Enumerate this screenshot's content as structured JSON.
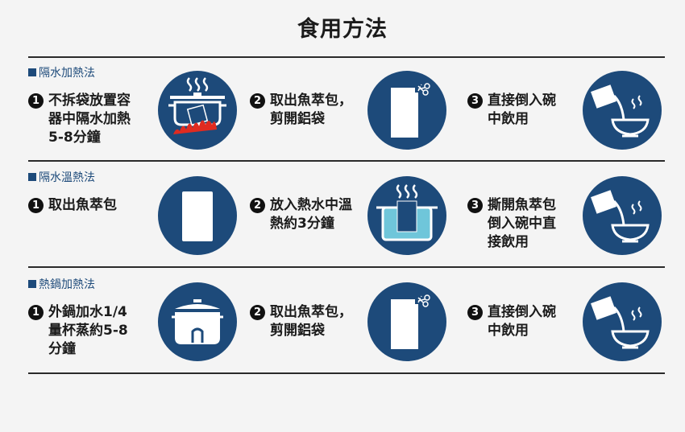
{
  "title": "食用方法",
  "colors": {
    "icon_circle": "#1d4a7a",
    "section_label": "#1d4a7a",
    "flame": "#e02b20",
    "water": "#6fc6da"
  },
  "sections": [
    {
      "label": "隔水加熱法",
      "steps": [
        {
          "num": "1",
          "text": "不拆袋放置容\n器中隔水加熱\n5-8分鐘",
          "icon": "pot-on-fire-icon"
        },
        {
          "num": "2",
          "text": "取出魚萃包，\n剪開鋁袋",
          "icon": "cut-pouch-icon"
        },
        {
          "num": "3",
          "text": "直接倒入碗\n中飲用",
          "icon": "pour-into-bowl-icon"
        }
      ]
    },
    {
      "label": "隔水溫熱法",
      "steps": [
        {
          "num": "1",
          "text": "取出魚萃包",
          "icon": "pouch-icon"
        },
        {
          "num": "2",
          "text": "放入熱水中溫\n熱約3分鐘",
          "icon": "pouch-in-hot-water-icon"
        },
        {
          "num": "3",
          "text": "撕開魚萃包\n倒入碗中直\n接飲用",
          "icon": "pour-into-bowl-icon"
        }
      ]
    },
    {
      "label": "熱鍋加熱法",
      "steps": [
        {
          "num": "1",
          "text": "外鍋加水1/4\n量杯蒸約5-8\n分鐘",
          "icon": "rice-cooker-icon"
        },
        {
          "num": "2",
          "text": "取出魚萃包，\n剪開鋁袋",
          "icon": "cut-pouch-icon"
        },
        {
          "num": "3",
          "text": "直接倒入碗\n中飲用",
          "icon": "pour-into-bowl-icon"
        }
      ]
    }
  ]
}
